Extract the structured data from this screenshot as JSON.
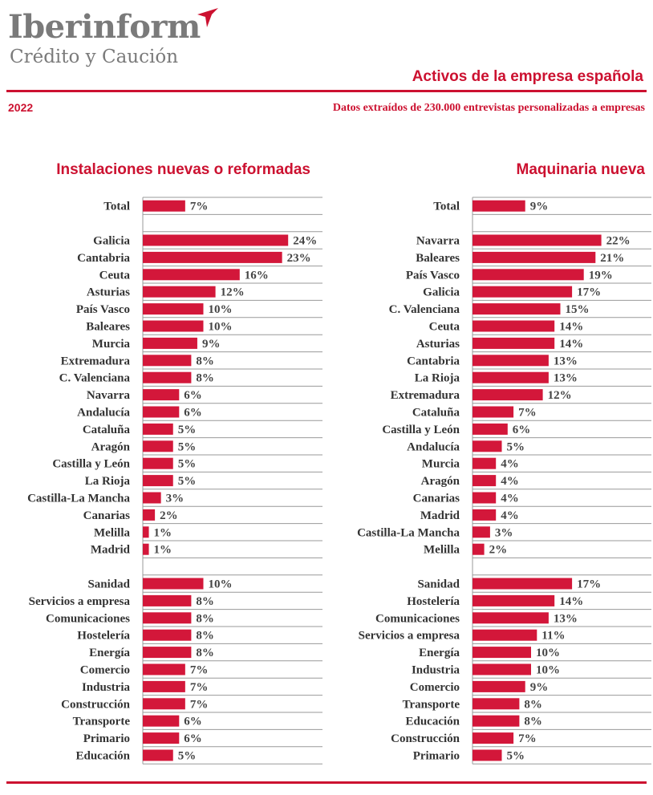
{
  "brand": {
    "name": "Iberinform",
    "subtitle": "Crédito y Caución"
  },
  "header": {
    "title": "Activos de la empresa española",
    "year": "2022",
    "source": "Datos extraídos de 230.000 entrevistas personalizadas a empresas"
  },
  "colors": {
    "accent": "#cc1130",
    "bar": "#d3173a",
    "text": "#333333",
    "grid": "#999999"
  },
  "chart_data": [
    {
      "type": "bar",
      "orientation": "horizontal",
      "title": "Instalaciones nuevas o reformadas",
      "unit": "%",
      "groups": [
        {
          "categories": [
            "Total"
          ],
          "values": [
            7
          ]
        },
        {
          "categories": [
            "Galicia",
            "Cantabria",
            "Ceuta",
            "Asturias",
            "País Vasco",
            "Baleares",
            "Murcia",
            "Extremadura",
            "C. Valenciana",
            "Navarra",
            "Andalucía",
            "Cataluña",
            "Aragón",
            "Castilla y León",
            "La Rioja",
            "Castilla-La Mancha",
            "Canarias",
            "Melilla",
            "Madrid"
          ],
          "values": [
            24,
            23,
            16,
            12,
            10,
            10,
            9,
            8,
            8,
            6,
            6,
            5,
            5,
            5,
            5,
            3,
            2,
            1,
            1
          ]
        },
        {
          "categories": [
            "Sanidad",
            "Servicios a empresa",
            "Comunicaciones",
            "Hostelería",
            "Energía",
            "Comercio",
            "Industria",
            "Construcción",
            "Transporte",
            "Primario",
            "Educación"
          ],
          "values": [
            10,
            8,
            8,
            8,
            8,
            7,
            7,
            7,
            6,
            6,
            5
          ]
        }
      ]
    },
    {
      "type": "bar",
      "orientation": "horizontal",
      "title": "Maquinaria nueva",
      "unit": "%",
      "groups": [
        {
          "categories": [
            "Total"
          ],
          "values": [
            9
          ]
        },
        {
          "categories": [
            "Navarra",
            "Baleares",
            "País Vasco",
            "Galicia",
            "C. Valenciana",
            "Ceuta",
            "Asturias",
            "Cantabria",
            "La Rioja",
            "Extremadura",
            "Cataluña",
            "Castilla y León",
            "Andalucía",
            "Murcia",
            "Aragón",
            "Canarias",
            "Madrid",
            "Castilla-La Mancha",
            "Melilla"
          ],
          "values": [
            22,
            21,
            19,
            17,
            15,
            14,
            14,
            13,
            13,
            12,
            7,
            6,
            5,
            4,
            4,
            4,
            4,
            3,
            2
          ]
        },
        {
          "categories": [
            "Sanidad",
            "Hostelería",
            "Comunicaciones",
            "Servicios a empresa",
            "Energía",
            "Industria",
            "Comercio",
            "Transporte",
            "Educación",
            "Construcción",
            "Primario"
          ],
          "values": [
            17,
            14,
            13,
            11,
            10,
            10,
            9,
            8,
            8,
            7,
            5
          ]
        }
      ]
    }
  ]
}
